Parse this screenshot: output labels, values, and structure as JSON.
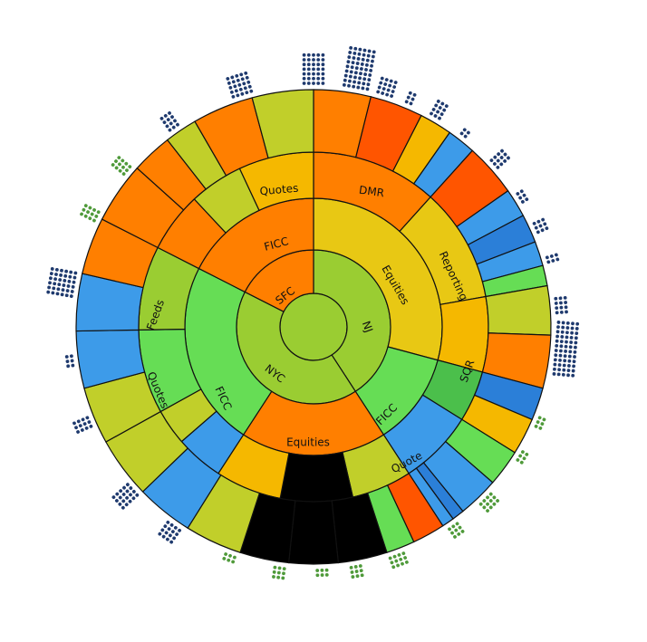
{
  "colors": {
    "lime": "#9ACD32",
    "yellow_green": "#C1CF2A",
    "yellow": "#E8C814",
    "amber": "#F5B800",
    "orange": "#FF7F00",
    "red_orange": "#FF5500",
    "light_green": "#66DD55",
    "green": "#4BBF4B",
    "blue": "#3D9BE9",
    "dark_blue": "#2B7FD8",
    "black": "#000000",
    "dot_navy": "#1F3A6E",
    "dot_green": "#4F9A3A",
    "border": "#111111"
  },
  "nodes": {
    "nj": "NJ",
    "sfc": "SFC",
    "nyc": "NYC",
    "equities_nj": "Equities",
    "ficc_nj": "FICC",
    "ficc_sfc": "FICC",
    "ficc_nyc": "FICC",
    "equities_nyc": "Equities",
    "dmr": "DMR",
    "reporting": "Reporting",
    "sqr": "SQR",
    "quote": "Quote",
    "quotes_sfc": "Quotes",
    "feeds": "Feeds",
    "quotes_nyc": "Quotes"
  }
}
